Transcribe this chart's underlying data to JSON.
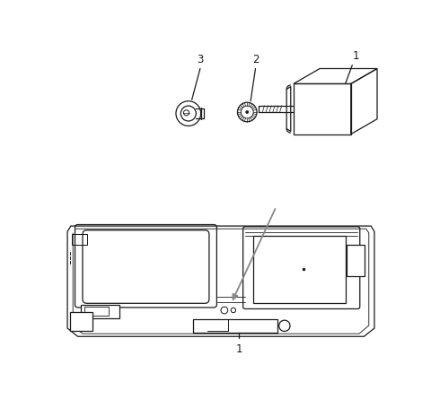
{
  "background_color": "#ffffff",
  "line_color": "#1a1a1a",
  "gray_color": "#888888",
  "label_fontsize": 8.5,
  "fig_width": 4.8,
  "fig_height": 4.45,
  "dpi": 100
}
